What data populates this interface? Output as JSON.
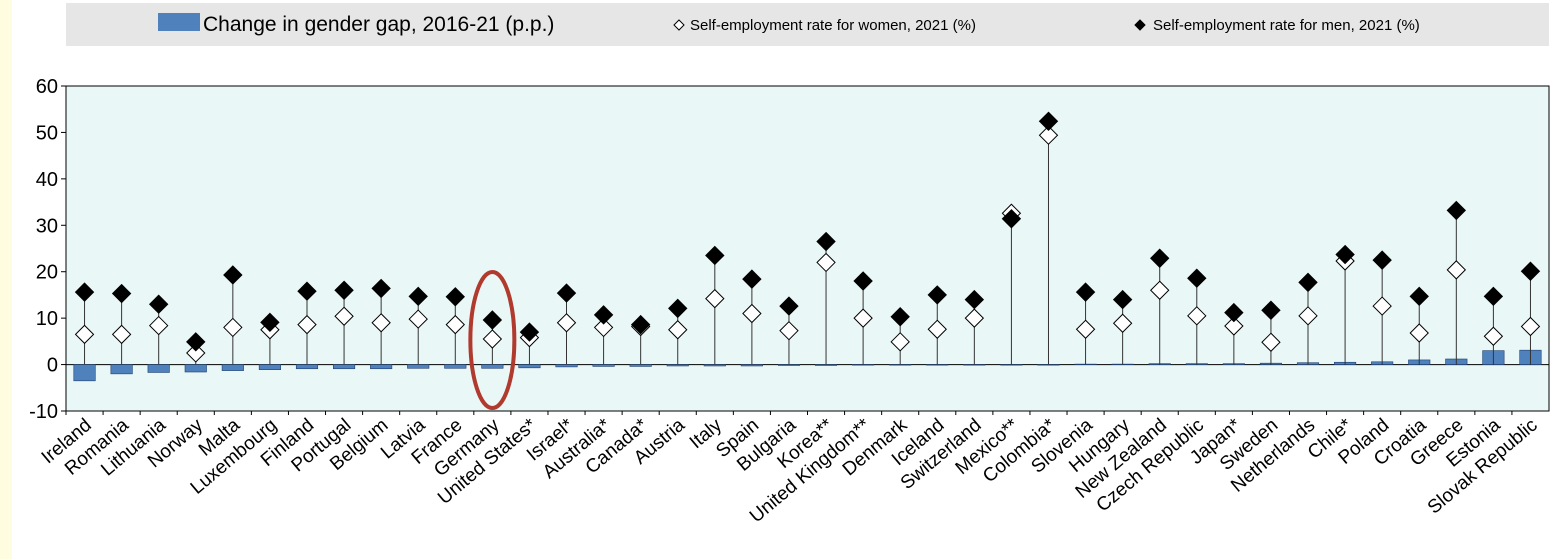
{
  "legend": {
    "bar_label": "Change in gender gap, 2016-21 (p.p.)",
    "women_label": "Self-employment rate for women, 2021 (%)",
    "men_label": "Self-employment rate for men, 2021 (%)"
  },
  "colors": {
    "bar_fill": "#4f81bd",
    "bar_stroke": "#1f3f6f",
    "plot_bg": "#eaf7f7",
    "legend_bg": "#e6e6e6",
    "highlight": "#b03a2e",
    "left_strip": "#fffde0"
  },
  "chart_data": {
    "type": "bar",
    "title": "",
    "xlabel": "",
    "ylabel": "",
    "ylim": [
      -10,
      60
    ],
    "yticks": [
      -10,
      0,
      10,
      20,
      30,
      40,
      50,
      60
    ],
    "highlighted_category": "Germany",
    "categories": [
      "Ireland",
      "Romania",
      "Lithuania",
      "Norway",
      "Malta",
      "Luxembourg",
      "Finland",
      "Portugal",
      "Belgium",
      "Latvia",
      "France",
      "Germany",
      "United States*",
      "Israel*",
      "Australia*",
      "Canada*",
      "Austria",
      "Italy",
      "Spain",
      "Bulgaria",
      "Korea**",
      "United Kingdom**",
      "Denmark",
      "Iceland",
      "Switzerland",
      "Mexico**",
      "Colombia*",
      "Slovenia",
      "Hungary",
      "New Zealand",
      "Czech Republic",
      "Japan*",
      "Sweden",
      "Netherlands",
      "Chile*",
      "Poland",
      "Croatia",
      "Greece",
      "Estonia",
      "Slovak Republic"
    ],
    "series": [
      {
        "name": "Change in gender gap, 2016-21 (p.p.)",
        "type": "bar",
        "values": [
          -3.5,
          -2.0,
          -1.7,
          -1.6,
          -1.3,
          -1.1,
          -0.9,
          -0.9,
          -0.9,
          -0.8,
          -0.8,
          -0.8,
          -0.7,
          -0.5,
          -0.4,
          -0.4,
          -0.3,
          -0.3,
          -0.3,
          -0.2,
          -0.2,
          -0.1,
          -0.1,
          0.0,
          0.0,
          0.0,
          0.0,
          0.1,
          0.1,
          0.2,
          0.2,
          0.2,
          0.3,
          0.4,
          0.5,
          0.6,
          1.0,
          1.2,
          3.0,
          3.1
        ]
      },
      {
        "name": "Self-employment rate for women, 2021 (%)",
        "type": "scatter",
        "marker": "hollow-diamond",
        "values": [
          6.5,
          6.5,
          8.4,
          2.5,
          8.0,
          7.5,
          8.6,
          10.4,
          9.0,
          9.8,
          8.6,
          5.5,
          5.8,
          9.0,
          8.0,
          8.2,
          7.5,
          14.2,
          11.0,
          7.3,
          22.0,
          10.0,
          4.9,
          7.6,
          10.0,
          32.6,
          49.4,
          7.6,
          8.9,
          16.0,
          10.5,
          8.3,
          4.8,
          10.5,
          22.3,
          12.6,
          6.8,
          20.4,
          6.1,
          8.2
        ]
      },
      {
        "name": "Self-employment rate for men, 2021 (%)",
        "type": "scatter",
        "marker": "filled-diamond",
        "values": [
          15.6,
          15.3,
          13.0,
          4.9,
          19.3,
          9.1,
          15.8,
          16.0,
          16.4,
          14.7,
          14.6,
          9.6,
          7.0,
          15.4,
          10.7,
          8.6,
          12.1,
          23.5,
          18.4,
          12.6,
          26.5,
          18.0,
          10.3,
          15.0,
          14.0,
          31.4,
          52.4,
          15.6,
          14.0,
          22.9,
          18.6,
          11.2,
          11.7,
          17.7,
          23.7,
          22.5,
          14.7,
          33.2,
          14.7,
          20.1
        ]
      }
    ]
  }
}
